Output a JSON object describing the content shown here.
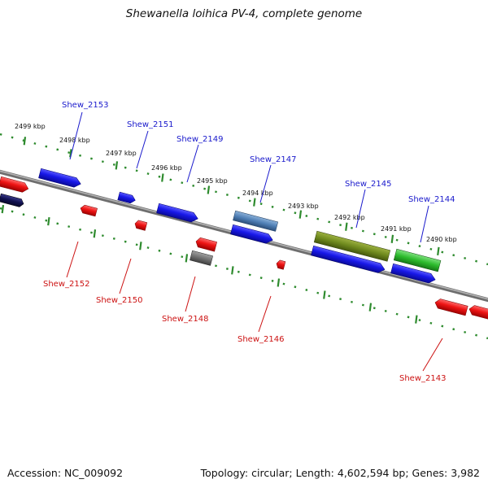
{
  "title": "Shewanella loihica PV-4, complete genome",
  "accession_label": "Accession: NC_009092",
  "summary_label": "Topology: circular; Length: 4,602,594 bp; Genes: 3,982",
  "colors": {
    "backbone": "#8c8c8c",
    "tick": "#2e8b2e",
    "top_gene_label": "#1a1acc",
    "bottom_gene_label": "#cc1111",
    "forward_gene": "#1e1ee6",
    "reverse_gene": "#e61e1e"
  },
  "kbp_labels": [
    "2499 kbp",
    "2498 kbp",
    "2497 kbp",
    "2496 kbp",
    "2495 kbp",
    "2494 kbp",
    "2493 kbp",
    "2492 kbp",
    "2491 kbp",
    "2490 kbp"
  ],
  "top_genes": [
    "Shew_2153",
    "Shew_2151",
    "Shew_2149",
    "Shew_2147",
    "Shew_2145",
    "Shew_2144"
  ],
  "bottom_genes": [
    "Shew_2152",
    "Shew_2150",
    "Shew_2148",
    "Shew_2146",
    "Shew_2143"
  ]
}
